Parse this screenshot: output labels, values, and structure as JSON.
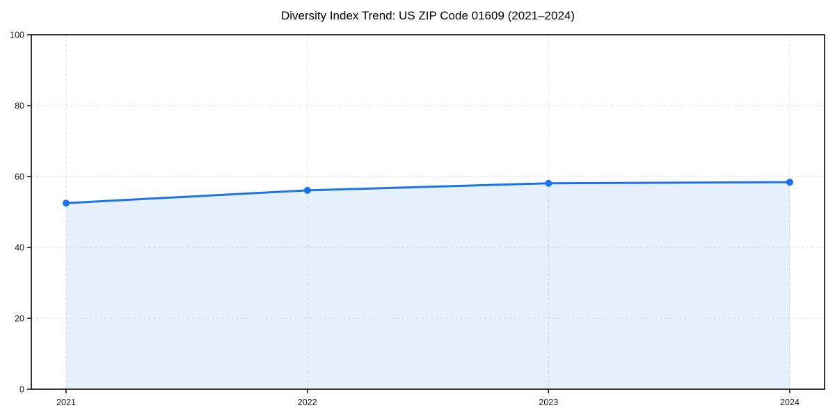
{
  "chart_data": {
    "type": "area",
    "title": "Diversity Index Trend: US ZIP Code 01609 (2021–2024)",
    "series_name": "Diversity Index",
    "x": [
      "2021",
      "2022",
      "2023",
      "2024"
    ],
    "values": [
      52.5,
      56.1,
      58.1,
      58.4
    ],
    "xlabel": "",
    "ylabel": "",
    "ylim": [
      0,
      100
    ],
    "yticks": [
      0,
      20,
      40,
      60,
      80,
      100
    ],
    "grid": true,
    "grid_style": "dashed",
    "legend": false,
    "marker": "circle",
    "colors": {
      "line": "#1a73e8",
      "marker": "#1a73e8",
      "fill": "#1a73e8",
      "fill_opacity": 0.11,
      "grid": "#dedede",
      "axis": "#000000",
      "tick_label": "#1a1a1a",
      "title": "#000000",
      "background": "#ffffff"
    }
  }
}
